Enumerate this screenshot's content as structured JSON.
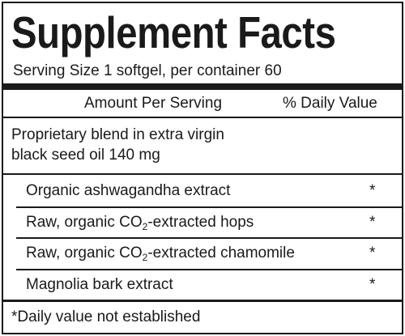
{
  "header": {
    "title": "Supplement Facts",
    "serving": "Serving Size 1 softgel, per container 60"
  },
  "columns": {
    "amount": "Amount Per Serving",
    "daily_value": "% Daily Value"
  },
  "blend": {
    "lines": [
      "Proprietary blend in extra virgin",
      "black seed oil 140 mg"
    ]
  },
  "ingredients": [
    {
      "parts": [
        "Organic ashwagandha extract"
      ],
      "dv": "*"
    },
    {
      "parts": [
        "Raw, organic CO",
        "2",
        "-extracted hops"
      ],
      "dv": "*"
    },
    {
      "parts": [
        "Raw, organic CO",
        "2",
        "-extracted chamomile"
      ],
      "dv": "*"
    },
    {
      "parts": [
        "Magnolia bark extract"
      ],
      "dv": "*"
    }
  ],
  "footnote": "*Daily value not established"
}
